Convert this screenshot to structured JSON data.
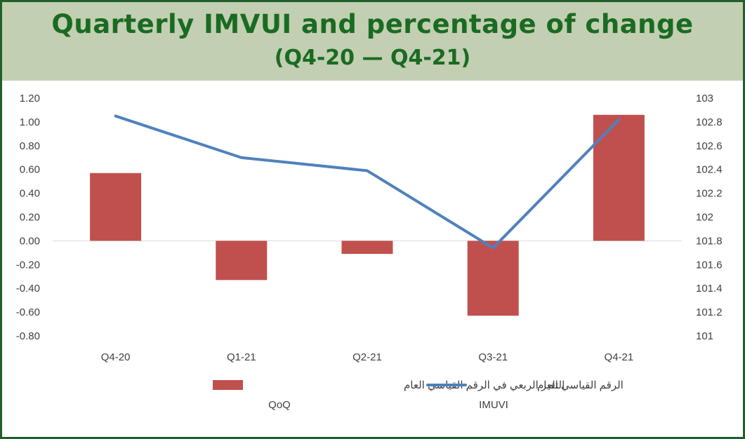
{
  "header": {
    "title": "Quarterly IMVUI and percentage of change",
    "subtitle": "(Q4-20 — Q4-21)"
  },
  "colors": {
    "bar": "#c0504d",
    "line": "#4f81bd",
    "title_text": "#1a6b22",
    "title_band": "#c3cfb2",
    "frame": "#1f5f2a"
  },
  "chart_data": {
    "type": "bar",
    "categories": [
      "Q4-20",
      "Q1-21",
      "Q2-21",
      "Q3-21",
      "Q4-21"
    ],
    "series": [
      {
        "name": "التغير الربعي  في الرقم القياسي العام QoQ",
        "type": "bar",
        "axis": "left",
        "values": [
          0.57,
          -0.33,
          -0.11,
          -0.63,
          1.06
        ]
      },
      {
        "name": "الرقم القياسي العام IMUVI",
        "type": "line",
        "axis": "right",
        "values": [
          102.85,
          102.5,
          102.39,
          101.74,
          102.82
        ]
      }
    ],
    "y_left": {
      "ylim": [
        -0.8,
        1.2
      ],
      "ticks": [
        1.2,
        1.0,
        0.8,
        0.6,
        0.4,
        0.2,
        0.0,
        -0.2,
        -0.4,
        -0.6,
        -0.8
      ],
      "tick_labels": [
        "1.20",
        "1.00",
        "0.80",
        "0.60",
        "0.40",
        "0.20",
        "0.00",
        "-0.20",
        "-0.40",
        "-0.60",
        "-0.80"
      ]
    },
    "y_right": {
      "ylim": [
        101,
        103
      ],
      "ticks": [
        103,
        102.8,
        102.6,
        102.4,
        102.2,
        102,
        101.8,
        101.6,
        101.4,
        101.2,
        101
      ],
      "tick_labels": [
        "103",
        "102.8",
        "102.6",
        "102.4",
        "102.2",
        "102",
        "101.8",
        "101.6",
        "101.4",
        "101.2",
        "101"
      ]
    },
    "legend": {
      "placement": "bottom",
      "items": [
        {
          "line1": "التغير الربعي  في الرقم القياسي العام",
          "line2": "QoQ"
        },
        {
          "line1": "الرقم القياسي العام",
          "line2": "IMUVI"
        }
      ]
    },
    "grid": false
  }
}
